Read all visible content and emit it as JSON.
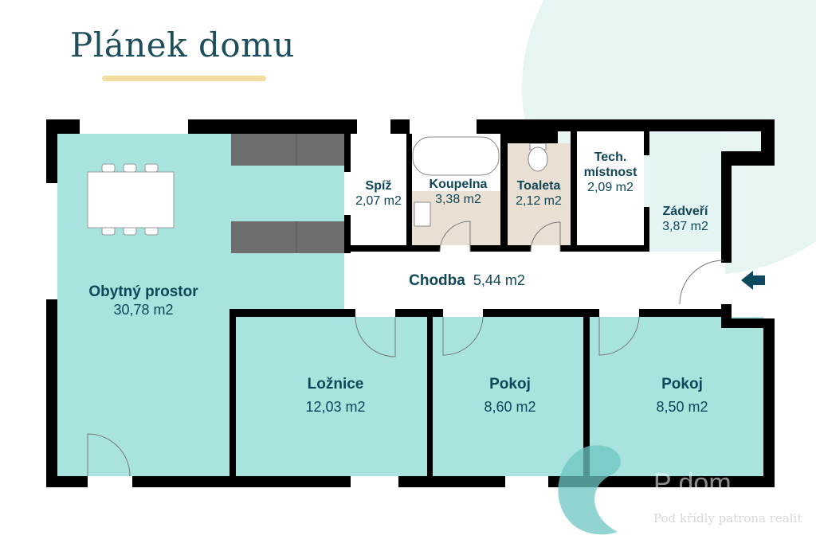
{
  "title": "Plánek domu",
  "rooms": {
    "obytny": {
      "name": "Obytný prostor",
      "area": "30,78 m2"
    },
    "spiz": {
      "name": "Spíž",
      "area": "2,07 m2"
    },
    "koupelna": {
      "name": "Koupelna",
      "area": "3,38 m2"
    },
    "toaleta": {
      "name": "Toaleta",
      "area": "2,12 m2"
    },
    "tech": {
      "name": "Tech. místnost",
      "name_line1": "Tech.",
      "name_line2": "místnost",
      "area": "2,09 m2"
    },
    "zadveri": {
      "name": "Zádveří",
      "area": "3,87 m2"
    },
    "chodba": {
      "name": "Chodba",
      "area": "5,44 m2"
    },
    "loznice": {
      "name": "Ložnice",
      "area": "12,03 m2"
    },
    "pokoj1": {
      "name": "Pokoj",
      "area": "8,60 m2"
    },
    "pokoj2": {
      "name": "Pokoj",
      "area": "8,50 m2"
    }
  },
  "entrance_icon": "arrow-left-icon",
  "watermark": {
    "logo": "P  dom",
    "tagline": "Pod křídly patrona realit"
  },
  "colors": {
    "accent": "#1e4d5c",
    "teal_room": "#a8e4dd",
    "beige_room": "#e9e0d3",
    "wall": "#000000",
    "underline": "#f3dea0"
  }
}
